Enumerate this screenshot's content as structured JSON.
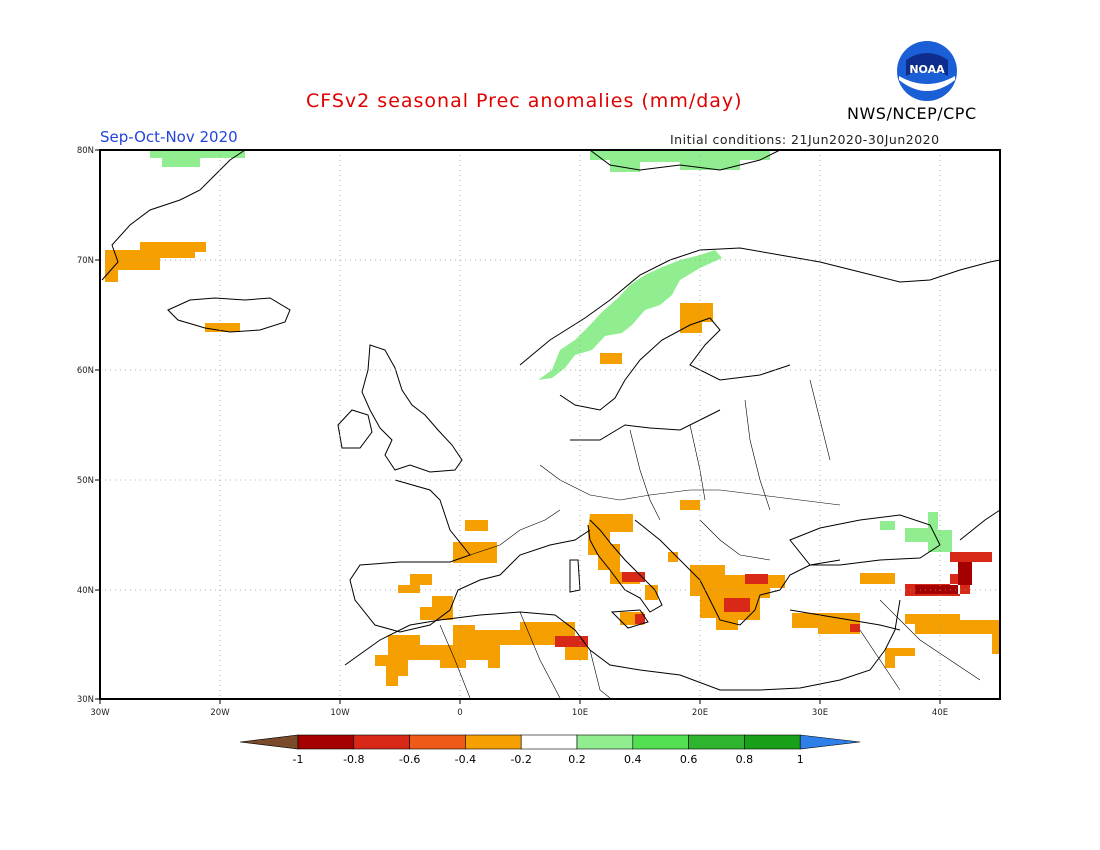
{
  "title": "CFSv2 seasonal Prec anomalies (mm/day)",
  "period": "Sep-Oct-Nov 2020",
  "initial_conditions": "Initial conditions: 21Jun2020-30Jun2020",
  "organization": "NWS/NCEP/CPC",
  "logo_text": "NOAA",
  "lat_labels": [
    "80N",
    "70N",
    "60N",
    "50N",
    "40N",
    "30N"
  ],
  "lon_labels": [
    "30W",
    "20W",
    "10W",
    "0",
    "10E",
    "20E",
    "30E",
    "40E"
  ],
  "colorbar": {
    "ticks": [
      "-1",
      "-0.8",
      "-0.6",
      "-0.4",
      "-0.2",
      "0.2",
      "0.4",
      "0.6",
      "0.8",
      "1"
    ],
    "colors": [
      "#7a4a2a",
      "#a40000",
      "#d82818",
      "#f05a18",
      "#f5a000",
      "#ffffff",
      "#90ee90",
      "#52e052",
      "#2fb42f",
      "#18a018",
      "#2f7fe8"
    ]
  },
  "anomaly_regions": [
    {
      "name": "greenland-north",
      "class": "wet-light"
    },
    {
      "name": "svalbard-north",
      "class": "wet-light"
    },
    {
      "name": "norway-coast",
      "class": "wet-light"
    },
    {
      "name": "caucasus",
      "class": "wet-light"
    },
    {
      "name": "greenland-east",
      "class": "dry-orange"
    },
    {
      "name": "iceland",
      "class": "dry-orange"
    },
    {
      "name": "sweden",
      "class": "dry-orange"
    },
    {
      "name": "iberia",
      "class": "dry-orange"
    },
    {
      "name": "north-africa",
      "class": "dry-orange"
    },
    {
      "name": "italy",
      "class": "dry-orange"
    },
    {
      "name": "balkans-greece",
      "class": "dry-orange"
    },
    {
      "name": "turkey",
      "class": "dry-orange"
    },
    {
      "name": "middle-east",
      "class": "dry-orange"
    },
    {
      "name": "tunisia",
      "class": "dry-red"
    },
    {
      "name": "greece",
      "class": "dry-red"
    },
    {
      "name": "east-turkey",
      "class": "dry-red"
    }
  ]
}
